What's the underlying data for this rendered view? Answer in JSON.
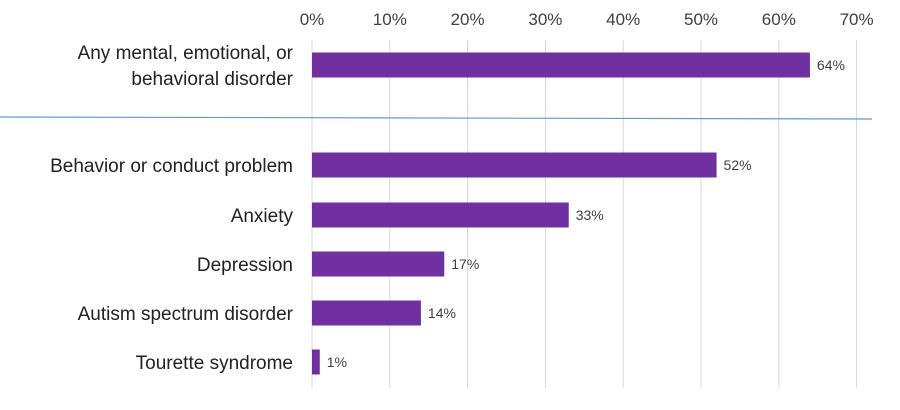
{
  "chart_data": {
    "type": "bar",
    "orientation": "horizontal",
    "x_axis_position": "top",
    "xlim": [
      0,
      70
    ],
    "x_ticks": [
      "0%",
      "10%",
      "20%",
      "30%",
      "40%",
      "50%",
      "60%",
      "70%"
    ],
    "grid": "vertical",
    "bar_color": "#7030A0",
    "separator_color": "#5B9BD5",
    "groups": [
      {
        "categories": [
          {
            "label_lines": [
              "Any mental, emotional, or",
              "behavioral disorder"
            ],
            "value": 64,
            "data_label": "64%"
          }
        ]
      },
      {
        "categories": [
          {
            "label_lines": [
              "Behavior or conduct problem"
            ],
            "value": 52,
            "data_label": "52%"
          },
          {
            "label_lines": [
              "Anxiety"
            ],
            "value": 33,
            "data_label": "33%"
          },
          {
            "label_lines": [
              "Depression"
            ],
            "value": 17,
            "data_label": "17%"
          },
          {
            "label_lines": [
              "Autism spectrum disorder"
            ],
            "value": 14,
            "data_label": "14%"
          },
          {
            "label_lines": [
              "Tourette syndrome"
            ],
            "value": 1,
            "data_label": "1%"
          }
        ]
      }
    ]
  }
}
